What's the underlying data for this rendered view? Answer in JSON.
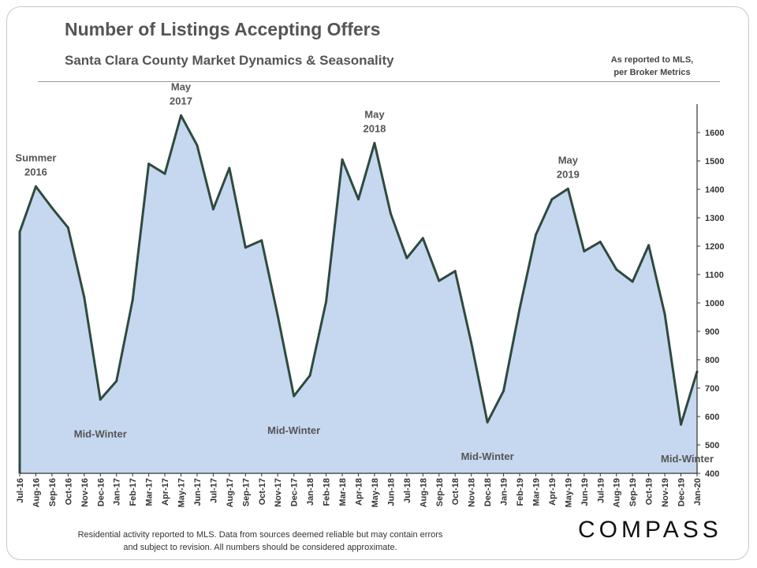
{
  "header": {
    "title": "Number of Listings Accepting Offers",
    "subtitle": "Santa Clara County Market Dynamics & Seasonality",
    "source_line1": "As reported to MLS,",
    "source_line2": "per Broker Metrics"
  },
  "footer": {
    "note_line1": "Residential activity reported to MLS. Data from sources deemed reliable but may contain errors",
    "note_line2": "and subject to revision. All numbers should be considered approximate.",
    "logo": "COMPASS"
  },
  "colors": {
    "fill": "#c5d8ef",
    "line": "#2f4a3f",
    "axis": "#333333"
  },
  "chart_data": {
    "type": "area",
    "title": "Number of Listings Accepting Offers",
    "xlabel": "",
    "ylabel": "",
    "ylim": [
      400,
      1700
    ],
    "yticks": [
      400,
      500,
      600,
      700,
      800,
      900,
      1000,
      1100,
      1200,
      1300,
      1400,
      1500,
      1600
    ],
    "categories": [
      "Jul-16",
      "Aug-16",
      "Sep-16",
      "Oct-16",
      "Nov-16",
      "Dec-16",
      "Jan-17",
      "Feb-17",
      "Mar-17",
      "Apr-17",
      "May-17",
      "Jun-17",
      "Jul-17",
      "Aug-17",
      "Sep-17",
      "Oct-17",
      "Nov-17",
      "Dec-17",
      "Jan-18",
      "Feb-18",
      "Mar-18",
      "Apr-18",
      "May-18",
      "Jun-18",
      "Jul-18",
      "Aug-18",
      "Sep-18",
      "Oct-18",
      "Nov-18",
      "Dec-18",
      "Jan-19",
      "Feb-19",
      "Mar-19",
      "Apr-19",
      "May-19",
      "Jun-19",
      "Jul-19",
      "Aug-19",
      "Sep-19",
      "Oct-19",
      "Nov-19",
      "Dec-19",
      "Jan-20"
    ],
    "values": [
      1250,
      1410,
      1335,
      1265,
      1020,
      660,
      725,
      1010,
      1490,
      1455,
      1660,
      1555,
      1330,
      1475,
      1195,
      1220,
      955,
      672,
      745,
      1005,
      1505,
      1365,
      1563,
      1315,
      1158,
      1228,
      1078,
      1112,
      860,
      580,
      690,
      980,
      1240,
      1365,
      1402,
      1182,
      1215,
      1118,
      1075,
      1203,
      960,
      572,
      758
    ],
    "annotations": [
      {
        "index": 1,
        "lines": [
          "Summer",
          "2016"
        ],
        "placement": "above"
      },
      {
        "index": 10,
        "lines": [
          "May",
          "2017"
        ],
        "placement": "above"
      },
      {
        "index": 22,
        "lines": [
          "May",
          "2018"
        ],
        "placement": "above"
      },
      {
        "index": 34,
        "lines": [
          "May",
          "2019"
        ],
        "placement": "above"
      },
      {
        "index": 5,
        "lines": [
          "Mid-Winter"
        ],
        "placement": "below"
      },
      {
        "index": 17,
        "lines": [
          "Mid-Winter"
        ],
        "placement": "below"
      },
      {
        "index": 29,
        "lines": [
          "Mid-Winter"
        ],
        "placement": "below"
      },
      {
        "index": 41,
        "lines": [
          "Mid-Winter"
        ],
        "placement": "below"
      }
    ],
    "y_axis_side": "right"
  }
}
